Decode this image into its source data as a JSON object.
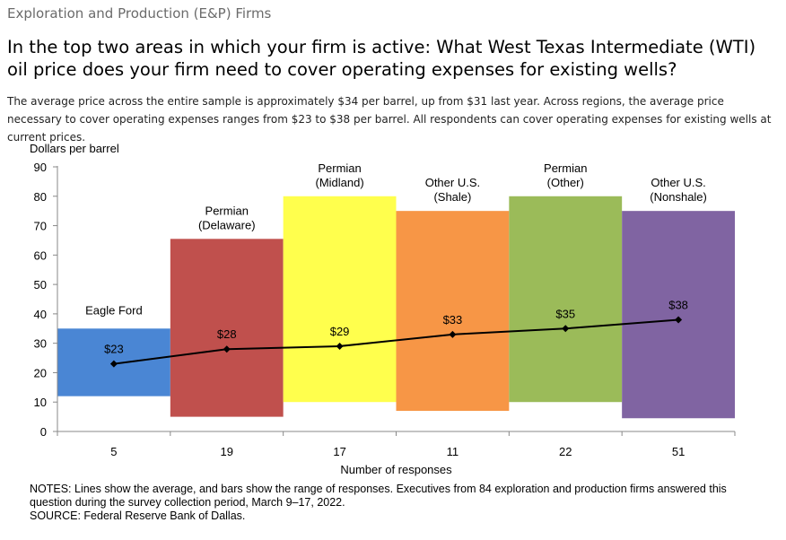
{
  "header": {
    "section": "Exploration and Production (E&P) Firms",
    "question": "In the top two areas in which your firm is active: What West Texas Intermediate (WTI) oil price does your firm need to cover operating expenses for existing wells?",
    "intro": "The average price across the entire sample is approximately $34 per barrel, up from $31 last year. Across regions, the average price necessary to cover operating expenses ranges from $23 to $38 per barrel. All respondents can cover operating expenses for existing wells at current prices."
  },
  "chart_data": {
    "type": "bar",
    "ylabel": "Dollars per barrel",
    "xlabel": "Number of responses",
    "ylim": [
      0,
      90
    ],
    "yticks": [
      0,
      10,
      20,
      30,
      40,
      50,
      60,
      70,
      80,
      90
    ],
    "grid": false,
    "categories": [
      {
        "label": [
          "Eagle Ford"
        ],
        "responses": "5",
        "low": 12,
        "high": 35,
        "avg": 23,
        "avg_label": "$23",
        "color": "#4a86d4"
      },
      {
        "label": [
          "Permian",
          "(Delaware)"
        ],
        "responses": "19",
        "low": 5,
        "high": 65.5,
        "avg": 28,
        "avg_label": "$28",
        "color": "#c0504d"
      },
      {
        "label": [
          "Permian",
          "(Midland)"
        ],
        "responses": "17",
        "low": 10,
        "high": 80,
        "avg": 29,
        "avg_label": "$29",
        "color": "#ffff4d"
      },
      {
        "label": [
          "Other U.S.",
          "(Shale)"
        ],
        "responses": "11",
        "low": 7,
        "high": 75,
        "avg": 33,
        "avg_label": "$33",
        "color": "#f79646"
      },
      {
        "label": [
          "Permian",
          "(Other)"
        ],
        "responses": "22",
        "low": 10,
        "high": 80,
        "avg": 35,
        "avg_label": "$35",
        "color": "#9bbb59"
      },
      {
        "label": [
          "Other U.S.",
          "(Nonshale)"
        ],
        "responses": "51",
        "low": 4.5,
        "high": 75,
        "avg": 38,
        "avg_label": "$38",
        "color": "#8064a2"
      }
    ]
  },
  "footer": {
    "notes": "NOTES: Lines show the average, and bars show the range of responses. Executives from 84 exploration and production firms answered this question during the survey collection period, March 9–17, 2022.",
    "source": "SOURCE: Federal Reserve Bank of Dallas."
  }
}
